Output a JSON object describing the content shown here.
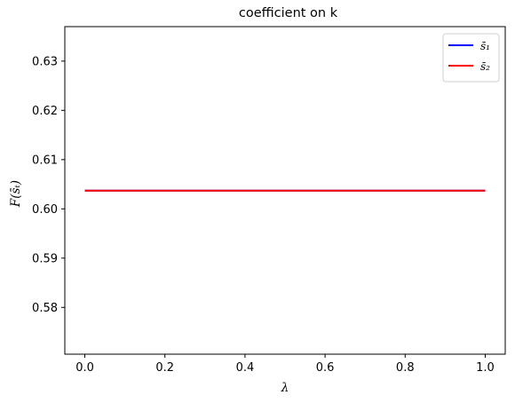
{
  "chart_data": {
    "type": "line",
    "title": "coefficient on k",
    "xlabel": "λ",
    "ylabel": "F(s̄ₜ)",
    "xlim": [
      -0.05,
      1.05
    ],
    "ylim": [
      0.5705,
      0.637
    ],
    "x_ticks": [
      0.0,
      0.2,
      0.4,
      0.6,
      0.8,
      1.0
    ],
    "x_tick_labels": [
      "0.0",
      "0.2",
      "0.4",
      "0.6",
      "0.8",
      "1.0"
    ],
    "y_ticks": [
      0.58,
      0.59,
      0.6,
      0.61,
      0.62,
      0.63
    ],
    "y_tick_labels": [
      "0.58",
      "0.59",
      "0.60",
      "0.61",
      "0.62",
      "0.63"
    ],
    "grid": false,
    "legend_position": "top-right",
    "series": [
      {
        "name": "s̄₁",
        "color": "#0000ff",
        "x": [
          0.0,
          1.0
        ],
        "y": [
          0.6037,
          0.6037
        ]
      },
      {
        "name": "s̄₂",
        "color": "#ff0000",
        "x": [
          0.0,
          1.0
        ],
        "y": [
          0.6037,
          0.6037
        ]
      }
    ]
  }
}
